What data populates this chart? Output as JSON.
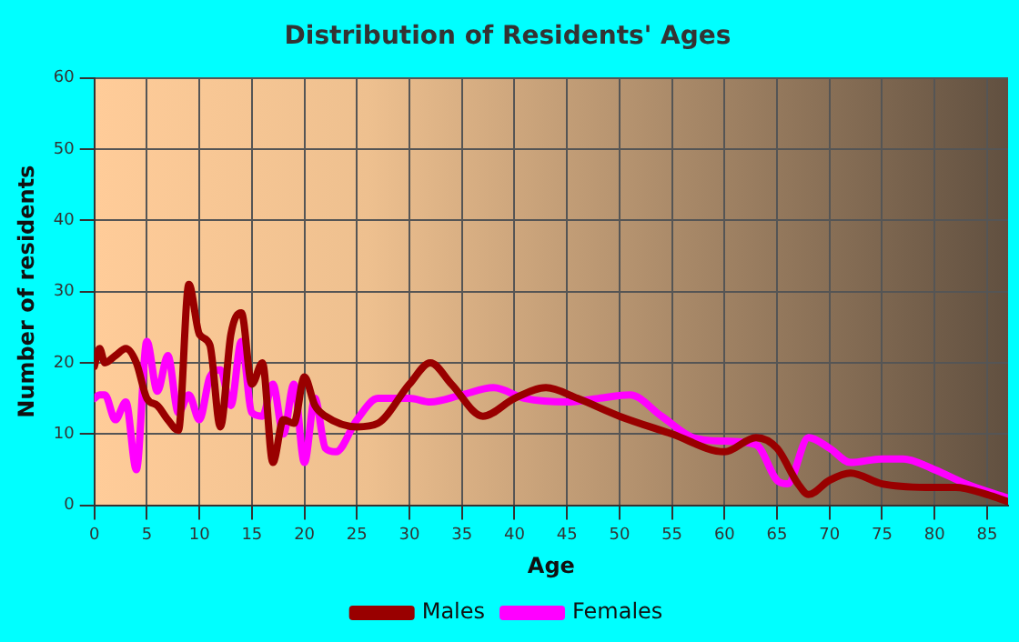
{
  "chart_data": {
    "type": "line",
    "title": "Distribution of Residents' Ages",
    "xlabel": "Age",
    "ylabel": "Number of residents",
    "xlim": [
      0,
      87
    ],
    "xticks": [
      0,
      5,
      10,
      15,
      20,
      25,
      30,
      35,
      40,
      45,
      50,
      55,
      60,
      65,
      70,
      75,
      80,
      85
    ],
    "ylim": [
      0,
      60
    ],
    "yticks": [
      0,
      10,
      20,
      30,
      40,
      50,
      60
    ],
    "grid": true,
    "legend": "bottom",
    "marker": "none",
    "line_style": "solid",
    "series": [
      {
        "name": "Males",
        "color": "#990000",
        "x": [
          0,
          0.5,
          1,
          2,
          3,
          4,
          5,
          6,
          7,
          8,
          9,
          10,
          11,
          12,
          13,
          14,
          15,
          16,
          17,
          18,
          19,
          20,
          21,
          22,
          25,
          27,
          30,
          32,
          34,
          37,
          40,
          43,
          46,
          50,
          55,
          60,
          63,
          65,
          67,
          68,
          70,
          72,
          75,
          80,
          82,
          85,
          87
        ],
        "values": [
          19.5,
          22,
          20,
          21,
          22,
          20,
          15,
          14,
          12,
          10.5,
          31,
          24,
          22.5,
          11,
          24,
          27,
          17,
          20,
          6,
          12,
          11.5,
          18,
          14,
          12.5,
          11,
          11.5,
          17,
          20,
          17,
          12.5,
          15,
          16.5,
          15,
          12.5,
          10,
          7.5,
          9.5,
          8,
          3,
          1.5,
          3.5,
          4.5,
          3,
          2.5,
          2.5,
          1.5,
          0.5
        ]
      },
      {
        "name": "Females",
        "color": "#ff00ff",
        "x": [
          0,
          0.5,
          1,
          2,
          3,
          4,
          5,
          6,
          7,
          8,
          9,
          10,
          11,
          12,
          13,
          14,
          15,
          16,
          17,
          18,
          19,
          20,
          21,
          22,
          23,
          25,
          27,
          30,
          32,
          35,
          38,
          41,
          45,
          48,
          51,
          54,
          57,
          60,
          63,
          65,
          66,
          68,
          70,
          72,
          75,
          77,
          80,
          83,
          87
        ],
        "values": [
          15,
          15.5,
          15.5,
          12,
          14.5,
          5,
          23,
          16,
          21,
          13,
          15.5,
          12,
          18,
          19,
          14,
          23,
          13,
          12.5,
          17,
          10,
          17,
          6,
          15,
          8,
          7.5,
          12,
          15,
          15,
          14.5,
          15.5,
          16.5,
          15,
          14.5,
          15,
          15.5,
          12.5,
          9.5,
          9,
          8.5,
          3.5,
          3,
          9.5,
          8,
          6,
          6.5,
          6.5,
          5,
          3,
          1
        ]
      }
    ]
  }
}
